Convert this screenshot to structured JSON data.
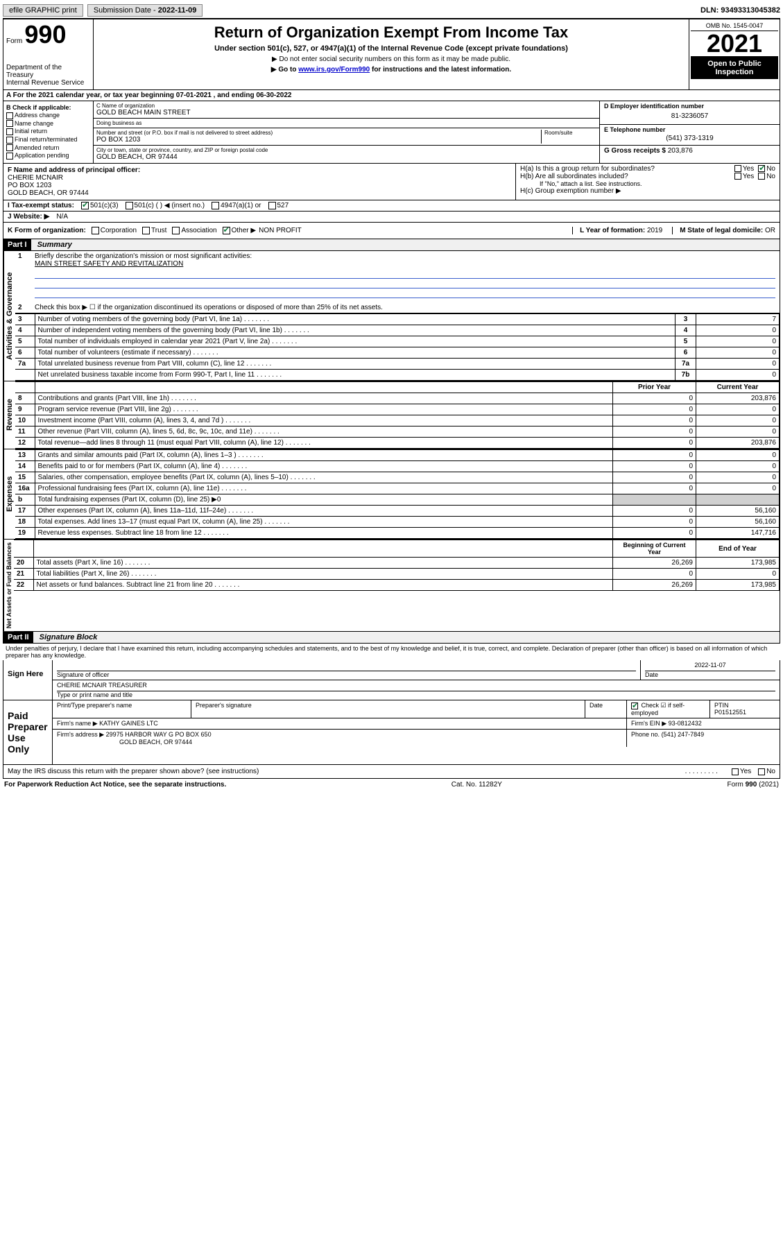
{
  "topbar": {
    "efile": "efile GRAPHIC print",
    "submission_label": "Submission Date - ",
    "submission_date": "2022-11-09",
    "dln_label": "DLN: ",
    "dln": "93493313045382"
  },
  "header": {
    "form_word": "Form",
    "form_no": "990",
    "title": "Return of Organization Exempt From Income Tax",
    "sub1": "Under section 501(c), 527, or 4947(a)(1) of the Internal Revenue Code (except private foundations)",
    "sub2": "▶ Do not enter social security numbers on this form as it may be made public.",
    "sub3_pre": "▶ Go to ",
    "sub3_link": "www.irs.gov/Form990",
    "sub3_post": " for instructions and the latest information.",
    "dept": "Department of the Treasury\nInternal Revenue Service",
    "omb": "OMB No. 1545-0047",
    "year": "2021",
    "open": "Open to Public Inspection"
  },
  "period": {
    "label_a": "A For the 2021 calendar year, or tax year beginning ",
    "start": "07-01-2021",
    "mid": " , and ending ",
    "end": "06-30-2022"
  },
  "sectionB": {
    "label": "B Check if applicable:",
    "opts": [
      "Address change",
      "Name change",
      "Initial return",
      "Final return/terminated",
      "Amended return",
      "Application pending"
    ]
  },
  "sectionC": {
    "name_label": "C Name of organization",
    "name": "GOLD BEACH MAIN STREET",
    "dba_label": "Doing business as",
    "dba": "",
    "addr_label": "Number and street (or P.O. box if mail is not delivered to street address)",
    "room_label": "Room/suite",
    "addr": "PO BOX 1203",
    "city_label": "City or town, state or province, country, and ZIP or foreign postal code",
    "city": "GOLD BEACH, OR  97444"
  },
  "sectionD": {
    "label": "D Employer identification number",
    "value": "81-3236057"
  },
  "sectionE": {
    "label": "E Telephone number",
    "value": "(541) 373-1319"
  },
  "sectionG": {
    "label": "G Gross receipts $",
    "value": "203,876"
  },
  "sectionF": {
    "label": "F Name and address of principal officer:",
    "name": "CHERIE MCNAIR",
    "addr1": "PO BOX 1203",
    "addr2": "GOLD BEACH, OR  97444"
  },
  "sectionH": {
    "a": "H(a)  Is this a group return for subordinates?",
    "b": "H(b)  Are all subordinates included?",
    "b_note": "If \"No,\" attach a list. See instructions.",
    "c": "H(c)  Group exemption number ▶",
    "yes": "Yes",
    "no": "No"
  },
  "sectionI": {
    "label": "I   Tax-exempt status:",
    "o1": "501(c)(3)",
    "o2": "501(c) (   ) ◀ (insert no.)",
    "o3": "4947(a)(1) or",
    "o4": "527"
  },
  "sectionJ": {
    "label": "J   Website: ▶",
    "value": "N/A"
  },
  "sectionK": {
    "label": "K Form of organization:",
    "opts": [
      "Corporation",
      "Trust",
      "Association",
      "Other ▶"
    ],
    "other_val": "NON PROFIT"
  },
  "sectionL": {
    "label": "L Year of formation:",
    "value": "2019"
  },
  "sectionM": {
    "label": "M State of legal domicile:",
    "value": "OR"
  },
  "part1": {
    "hdr": "Part I",
    "title": "Summary"
  },
  "summary": {
    "line1_label": "Briefly describe the organization's mission or most significant activities:",
    "line1_value": "MAIN STREET SAFETY AND REVITALIZATION",
    "line2": "Check this box ▶ ☐  if the organization discontinued its operations or disposed of more than 25% of its net assets.",
    "rows_gov": [
      {
        "n": "3",
        "t": "Number of voting members of the governing body (Part VI, line 1a)",
        "box": "3",
        "v": "7"
      },
      {
        "n": "4",
        "t": "Number of independent voting members of the governing body (Part VI, line 1b)",
        "box": "4",
        "v": "0"
      },
      {
        "n": "5",
        "t": "Total number of individuals employed in calendar year 2021 (Part V, line 2a)",
        "box": "5",
        "v": "0"
      },
      {
        "n": "6",
        "t": "Total number of volunteers (estimate if necessary)",
        "box": "6",
        "v": "0"
      },
      {
        "n": "7a",
        "t": "Total unrelated business revenue from Part VIII, column (C), line 12",
        "box": "7a",
        "v": "0"
      },
      {
        "n": "",
        "t": "Net unrelated business taxable income from Form 990-T, Part I, line 11",
        "box": "7b",
        "v": "0"
      }
    ],
    "col_prior": "Prior Year",
    "col_current": "Current Year",
    "rows_rev": [
      {
        "n": "8",
        "t": "Contributions and grants (Part VIII, line 1h)",
        "p": "0",
        "c": "203,876"
      },
      {
        "n": "9",
        "t": "Program service revenue (Part VIII, line 2g)",
        "p": "0",
        "c": "0"
      },
      {
        "n": "10",
        "t": "Investment income (Part VIII, column (A), lines 3, 4, and 7d )",
        "p": "0",
        "c": "0"
      },
      {
        "n": "11",
        "t": "Other revenue (Part VIII, column (A), lines 5, 6d, 8c, 9c, 10c, and 11e)",
        "p": "0",
        "c": "0"
      },
      {
        "n": "12",
        "t": "Total revenue—add lines 8 through 11 (must equal Part VIII, column (A), line 12)",
        "p": "0",
        "c": "203,876"
      }
    ],
    "rows_exp": [
      {
        "n": "13",
        "t": "Grants and similar amounts paid (Part IX, column (A), lines 1–3 )",
        "p": "0",
        "c": "0"
      },
      {
        "n": "14",
        "t": "Benefits paid to or for members (Part IX, column (A), line 4)",
        "p": "0",
        "c": "0"
      },
      {
        "n": "15",
        "t": "Salaries, other compensation, employee benefits (Part IX, column (A), lines 5–10)",
        "p": "0",
        "c": "0"
      },
      {
        "n": "16a",
        "t": "Professional fundraising fees (Part IX, column (A), line 11e)",
        "p": "0",
        "c": "0"
      },
      {
        "n": "b",
        "t": "Total fundraising expenses (Part IX, column (D), line 25) ▶0",
        "p": "",
        "c": "",
        "shade": true
      },
      {
        "n": "17",
        "t": "Other expenses (Part IX, column (A), lines 11a–11d, 11f–24e)",
        "p": "0",
        "c": "56,160"
      },
      {
        "n": "18",
        "t": "Total expenses. Add lines 13–17 (must equal Part IX, column (A), line 25)",
        "p": "0",
        "c": "56,160"
      },
      {
        "n": "19",
        "t": "Revenue less expenses. Subtract line 18 from line 12",
        "p": "0",
        "c": "147,716"
      }
    ],
    "col_begin": "Beginning of Current Year",
    "col_end": "End of Year",
    "rows_net": [
      {
        "n": "20",
        "t": "Total assets (Part X, line 16)",
        "p": "26,269",
        "c": "173,985"
      },
      {
        "n": "21",
        "t": "Total liabilities (Part X, line 26)",
        "p": "0",
        "c": "0"
      },
      {
        "n": "22",
        "t": "Net assets or fund balances. Subtract line 21 from line 20",
        "p": "26,269",
        "c": "173,985"
      }
    ]
  },
  "sidelabels": {
    "gov": "Activities & Governance",
    "rev": "Revenue",
    "exp": "Expenses",
    "net": "Net Assets or Fund Balances"
  },
  "part2": {
    "hdr": "Part II",
    "title": "Signature Block"
  },
  "sig": {
    "disclaimer": "Under penalties of perjury, I declare that I have examined this return, including accompanying schedules and statements, and to the best of my knowledge and belief, it is true, correct, and complete. Declaration of preparer (other than officer) is based on all information of which preparer has any knowledge.",
    "sign_here": "Sign Here",
    "sig_officer_label": "Signature of officer",
    "date_label": "Date",
    "date": "2022-11-07",
    "name_label": "Type or print name and title",
    "name": "CHERIE MCNAIR TREASURER",
    "paid": "Paid Preparer Use Only",
    "prep_name_label": "Print/Type preparer's name",
    "prep_sig_label": "Preparer's signature",
    "ptin_label": "PTIN",
    "ptin": "P01512551",
    "self_emp": "Check ☑ if self-employed",
    "firm_name_label": "Firm's name   ▶",
    "firm_name": "KATHY GAINES LTC",
    "firm_ein_label": "Firm's EIN ▶",
    "firm_ein": "93-0812432",
    "firm_addr_label": "Firm's address ▶",
    "firm_addr1": "29975 HARBOR WAY G PO BOX 650",
    "firm_addr2": "GOLD BEACH, OR  97444",
    "phone_label": "Phone no.",
    "phone": "(541) 247-7849",
    "discuss": "May the IRS discuss this return with the preparer shown above? (see instructions)"
  },
  "footer": {
    "left": "For Paperwork Reduction Act Notice, see the separate instructions.",
    "mid": "Cat. No. 11282Y",
    "right": "Form 990 (2021)"
  }
}
